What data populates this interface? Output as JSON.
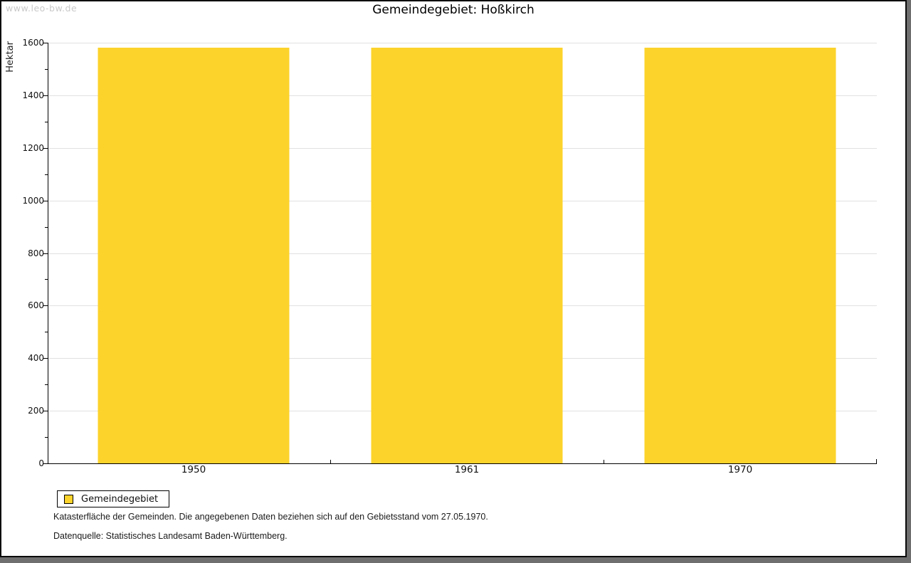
{
  "watermark": "www.leo-bw.de",
  "title": "Gemeindegebiet: Hoßkirch",
  "chart_data": {
    "type": "bar",
    "title": "Gemeindegebiet: Hoßkirch",
    "categories": [
      "1950",
      "1961",
      "1970"
    ],
    "series": [
      {
        "name": "Gemeindegebiet",
        "values": [
          1581,
          1581,
          1581
        ]
      }
    ],
    "xlabel": "",
    "ylabel": "Hektar",
    "ylim": [
      0,
      1600
    ],
    "ytick_step": 200,
    "minor_tick_step": 100,
    "grid": true,
    "legend_position": "bottom-left",
    "bar_color": "#fcd32b"
  },
  "legend": {
    "items": [
      {
        "label": "Gemeindegebiet",
        "color": "#fcd32b"
      }
    ]
  },
  "footer": {
    "line1": "Katasterfläche der Gemeinden. Die angegebenen Daten beziehen sich auf den Gebietsstand vom 27.05.1970.",
    "line2": "Datenquelle: Statistisches Landesamt Baden-Württemberg."
  },
  "colors": {
    "bar": "#fcd32b",
    "gridline": "#e1e1e1",
    "axis": "#000000",
    "watermark": "#c9c9c9",
    "frame_border": "#0a0a0a",
    "shadow": "#6f6f6f",
    "background": "#ffffff"
  }
}
